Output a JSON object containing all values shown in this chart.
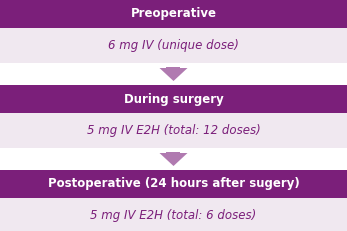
{
  "background_color": "#ffffff",
  "header_bg_color": "#7b1f7a",
  "desc_bg_color": "#f0e8f0",
  "header_text_color": "#ffffff",
  "desc_text_color": "#7b1f7a",
  "arrow_color": "#b07ab0",
  "sections": [
    {
      "header": "Preoperative",
      "description": "6 mg IV (unique dose)"
    },
    {
      "header": "During surgery",
      "description": "5 mg IV E2H (total: 12 doses)"
    },
    {
      "header": "Postoperative (24 hours after sugery)",
      "description": "5 mg IV E2H (total: 6 doses)"
    }
  ],
  "header_fontsize": 8.5,
  "desc_fontsize": 8.5,
  "fig_width": 3.47,
  "fig_height": 2.31,
  "dpi": 100
}
